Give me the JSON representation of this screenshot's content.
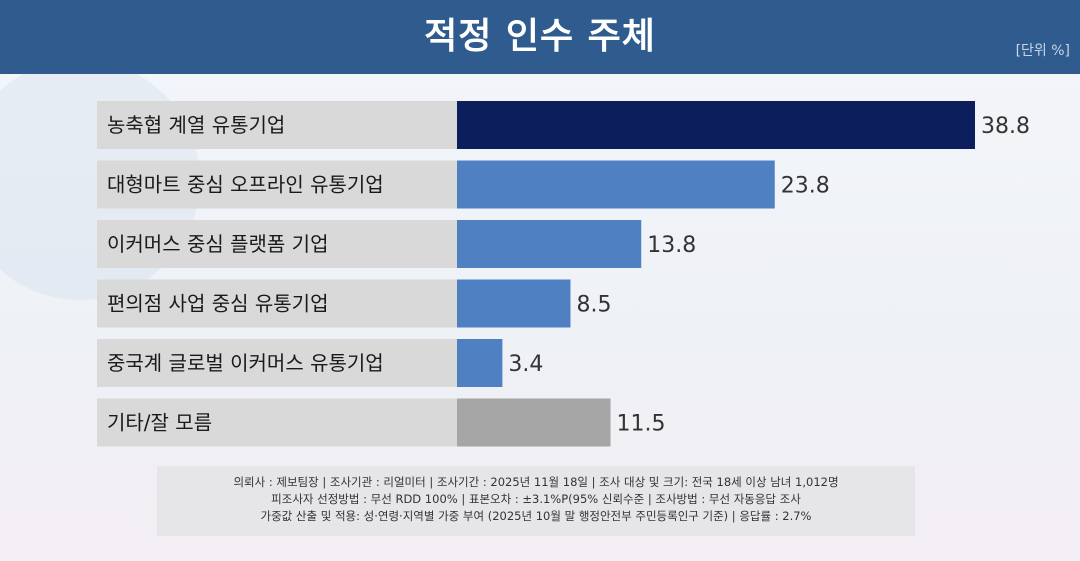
{
  "title": "적정 인수 주체",
  "unit": "[단위 %]",
  "chart_data": {
    "type": "bar",
    "orientation": "horizontal",
    "title": "적정 인수 주체",
    "categories": [
      "농축협 계열 유통기업",
      "대형마트 중심 오프라인 유통기업",
      "이커머스 중심 플랫폼 기업",
      "편의점 사업 중심 유통기업",
      "중국계 글로벌 이커머스 유통기업",
      "기타/잘 모름"
    ],
    "values": [
      38.8,
      23.8,
      13.8,
      8.5,
      3.4,
      11.5
    ],
    "value_labels": [
      "38.8",
      "23.8",
      "13.8",
      "8.5",
      "3.4",
      "11.5"
    ],
    "colors": [
      "#0c1f5c",
      "#4f81c2",
      "#4f81c2",
      "#4f81c2",
      "#4f81c2",
      "#a6a6a6"
    ],
    "xlim": [
      0,
      40
    ],
    "grid": false,
    "legend": "none"
  },
  "footnote": {
    "line1": "의뢰사 : 제보팀장  | 조사기관 : 리얼미터  |  조사기간 : 2025년 11월 18일 | 조사 대상 및 크기: 전국 18세 이상 남녀 1,012명",
    "line2": "피조사자 선정방법 : 무선 RDD 100% | 표본오차 : ±3.1%P(95% 신뢰수준 | 조사방법 : 무선 자동응답 조사",
    "line3": "가중값 산출 및 적용: 성·연령·지역별 가중 부여 (2025년 10월 말 행정안전부 주민등록인구 기준) | 응답률 : 2.7%"
  }
}
